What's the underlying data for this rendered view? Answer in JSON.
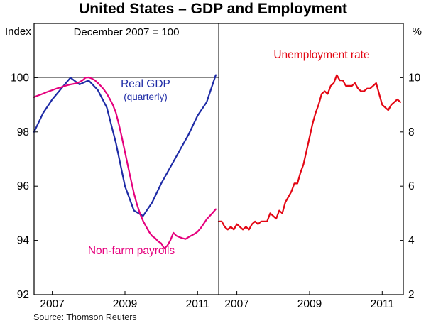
{
  "labels": {
    "title": "United States – GDP and Employment",
    "left_axis_unit": "Index",
    "right_axis_unit": "%",
    "base_note": "December 2007 = 100",
    "real_gdp": "Real GDP",
    "real_gdp_sub": "(quarterly)",
    "non_farm": "Non-farm payrolls",
    "unemployment": "Unemployment rate",
    "source": "Source: Thomson Reuters"
  },
  "colors": {
    "real_gdp": "#1e2ba6",
    "non_farm": "#e5007d",
    "unemployment": "#e30613",
    "frame": "#000000",
    "reference_line": "#777777"
  },
  "chart_data": {
    "type": "line",
    "title": "United States – GDP and Employment",
    "source": "Source: Thomson Reuters",
    "legend_position": "inline-annotations",
    "grid": false,
    "panels": [
      {
        "name": "gdp-and-payrolls",
        "axis_unit": "Index",
        "axis_side": "left",
        "subtitle": "December 2007 = 100",
        "ylim": [
          92,
          102
        ],
        "y_ticks": [
          100,
          98,
          96,
          94,
          92
        ],
        "xlim": [
          2006.5,
          2011.58
        ],
        "x_ticks": [
          2007,
          2009,
          2011
        ],
        "reference_line": 100,
        "series": [
          {
            "name": "Real GDP (quarterly)",
            "color": "#1e2ba6",
            "x_start": 2006.5,
            "x_step": 0.25,
            "values": [
              98.0,
              98.7,
              99.2,
              99.6,
              100.0,
              99.75,
              99.9,
              99.55,
              98.9,
              97.6,
              96.0,
              95.1,
              94.9,
              95.4,
              96.1,
              96.7,
              97.3,
              97.9,
              98.6,
              99.1,
              100.1
            ]
          },
          {
            "name": "Non-farm payrolls",
            "color": "#e5007d",
            "x_start": 2006.5,
            "x_step": 0.0833333,
            "values": [
              99.28,
              99.33,
              99.37,
              99.41,
              99.46,
              99.5,
              99.54,
              99.58,
              99.62,
              99.65,
              99.69,
              99.72,
              99.75,
              99.77,
              99.8,
              99.84,
              99.9,
              100.0,
              100.01,
              99.97,
              99.91,
              99.81,
              99.7,
              99.57,
              99.41,
              99.22,
              99.0,
              98.71,
              98.28,
              97.79,
              97.26,
              96.74,
              96.22,
              95.73,
              95.32,
              94.98,
              94.72,
              94.51,
              94.31,
              94.16,
              94.08,
              93.96,
              93.89,
              93.7,
              93.81,
              94.0,
              94.28,
              94.17,
              94.12,
              94.08,
              94.05,
              94.12,
              94.18,
              94.24,
              94.32,
              94.45,
              94.61,
              94.78,
              94.9,
              95.02,
              95.15
            ]
          }
        ]
      },
      {
        "name": "unemployment",
        "axis_unit": "%",
        "axis_side": "right",
        "ylim": [
          2,
          12
        ],
        "y_ticks": [
          10,
          8,
          6,
          4,
          2
        ],
        "xlim": [
          2006.5,
          2011.58
        ],
        "x_ticks": [
          2007,
          2009,
          2011
        ],
        "reference_line": null,
        "series": [
          {
            "name": "Unemployment rate",
            "color": "#e30613",
            "x_start": 2006.5,
            "x_step": 0.0833333,
            "values": [
              4.7,
              4.7,
              4.5,
              4.4,
              4.5,
              4.4,
              4.6,
              4.5,
              4.4,
              4.5,
              4.4,
              4.6,
              4.7,
              4.6,
              4.7,
              4.7,
              4.7,
              5.0,
              4.9,
              4.8,
              5.1,
              5.0,
              5.4,
              5.6,
              5.8,
              6.1,
              6.1,
              6.5,
              6.8,
              7.3,
              7.8,
              8.3,
              8.7,
              9.0,
              9.4,
              9.5,
              9.4,
              9.7,
              9.8,
              10.1,
              9.9,
              9.9,
              9.7,
              9.7,
              9.7,
              9.8,
              9.6,
              9.5,
              9.5,
              9.6,
              9.6,
              9.7,
              9.8,
              9.4,
              9.0,
              8.9,
              8.8,
              9.0,
              9.1,
              9.2,
              9.1
            ]
          }
        ]
      }
    ]
  }
}
